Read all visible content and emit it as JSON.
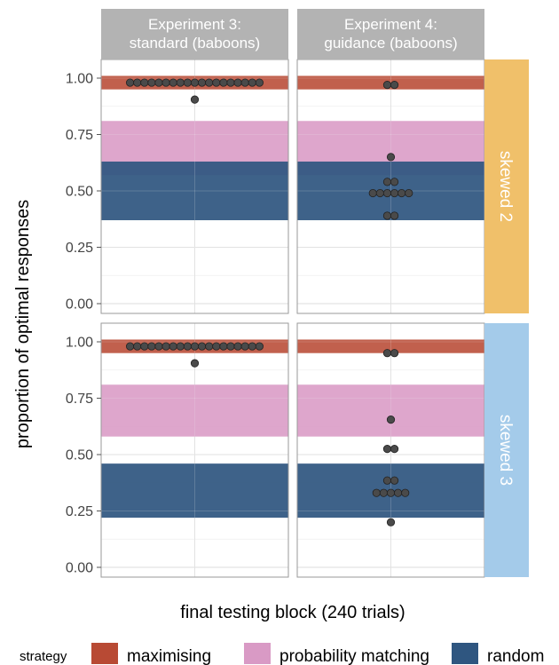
{
  "chart_data": {
    "type": "scatter",
    "subtype": "faceted dot plot with shaded strategy bands",
    "xlabel": "final testing block (240 trials)",
    "ylabel": "proportion of optimal responses",
    "ylim": [
      0,
      1
    ],
    "yticks": [
      "0.00",
      "0.25",
      "0.50",
      "0.75",
      "1.00"
    ],
    "columns": [
      "Experiment 3:\nstandard (baboons)",
      "Experiment 4:\nguidance (baboons)"
    ],
    "column_lines": [
      [
        "Experiment 3:",
        "standard (baboons)"
      ],
      [
        "Experiment 4:",
        "guidance (baboons)"
      ]
    ],
    "rows": [
      "skewed 2",
      "skewed 3"
    ],
    "row_colors": [
      "#f0c06a",
      "#a4cbea"
    ],
    "legend": {
      "title": "strategy",
      "position": "bottom",
      "entries": [
        {
          "name": "maximising",
          "color": "#b84a34"
        },
        {
          "name": "probability matching",
          "color": "#d99ac5"
        },
        {
          "name": "random",
          "color": "#2f5680"
        }
      ]
    },
    "bands": [
      {
        "row": 0,
        "strategy": "maximising",
        "color": "#b84a34",
        "ymin": 0.95,
        "ymax": 1.01
      },
      {
        "row": 0,
        "strategy": "probability matching",
        "color": "#d99ac5",
        "ymin": 0.57,
        "ymax": 0.81
      },
      {
        "row": 0,
        "strategy": "random",
        "color": "#2f5680",
        "ymin": 0.37,
        "ymax": 0.63
      },
      {
        "row": 1,
        "strategy": "maximising",
        "color": "#b84a34",
        "ymin": 0.95,
        "ymax": 1.01
      },
      {
        "row": 1,
        "strategy": "probability matching",
        "color": "#d99ac5",
        "ymin": 0.58,
        "ymax": 0.81
      },
      {
        "row": 1,
        "strategy": "random",
        "color": "#2f5680",
        "ymin": 0.22,
        "ymax": 0.46
      }
    ],
    "panels": [
      {
        "row": 0,
        "col": 0,
        "points": [
          {
            "y": 0.98,
            "n": 19
          },
          {
            "y": 0.905,
            "n": 1
          }
        ]
      },
      {
        "row": 0,
        "col": 1,
        "points": [
          {
            "y": 0.97,
            "n": 2
          },
          {
            "y": 0.65,
            "n": 1
          },
          {
            "y": 0.54,
            "n": 2
          },
          {
            "y": 0.49,
            "n": 6
          },
          {
            "y": 0.39,
            "n": 2
          }
        ]
      },
      {
        "row": 1,
        "col": 0,
        "points": [
          {
            "y": 0.98,
            "n": 19
          },
          {
            "y": 0.905,
            "n": 1
          }
        ]
      },
      {
        "row": 1,
        "col": 1,
        "points": [
          {
            "y": 0.95,
            "n": 2
          },
          {
            "y": 0.655,
            "n": 1
          },
          {
            "y": 0.525,
            "n": 2
          },
          {
            "y": 0.385,
            "n": 2
          },
          {
            "y": 0.33,
            "n": 5
          },
          {
            "y": 0.2,
            "n": 1
          }
        ]
      }
    ]
  }
}
